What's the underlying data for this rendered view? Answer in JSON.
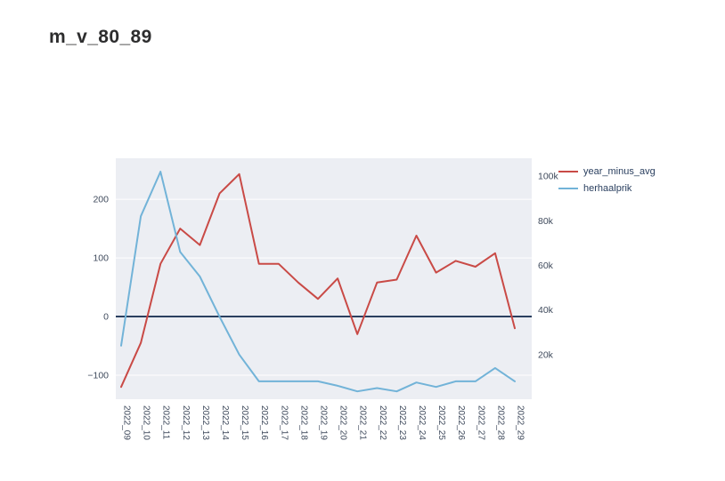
{
  "title": "m_v_80_89",
  "chart_data": {
    "type": "line",
    "title": "m_v_80_89",
    "categories": [
      "2022_09",
      "2022_10",
      "2022_11",
      "2022_12",
      "2022_13",
      "2022_14",
      "2022_15",
      "2022_16",
      "2022_17",
      "2022_18",
      "2022_19",
      "2022_20",
      "2022_21",
      "2022_22",
      "2022_23",
      "2022_24",
      "2022_25",
      "2022_26",
      "2022_27",
      "2022_28",
      "2022_29"
    ],
    "series": [
      {
        "name": "year_minus_avg",
        "axis": "left",
        "color": "#c94a46",
        "values": [
          -120,
          -45,
          90,
          150,
          122,
          210,
          243,
          90,
          90,
          58,
          30,
          65,
          -30,
          58,
          63,
          138,
          75,
          95,
          85,
          108,
          -20
        ]
      },
      {
        "name": "herhaalprik",
        "axis": "right",
        "color": "#72b3d8",
        "values": [
          24000,
          82000,
          102000,
          66000,
          55000,
          37000,
          20000,
          8000,
          8000,
          8000,
          8000,
          6000,
          3500,
          5000,
          3500,
          7500,
          5500,
          8000,
          8000,
          14000,
          8000
        ]
      }
    ],
    "left_axis": {
      "range": [
        -141,
        270
      ],
      "ticks": [
        -100,
        0,
        100,
        200
      ],
      "tick_labels": [
        "−100",
        "0",
        "100",
        "200"
      ]
    },
    "right_axis": {
      "range": [
        0,
        108000
      ],
      "ticks": [
        20000,
        40000,
        60000,
        80000,
        100000
      ],
      "tick_labels": [
        "20k",
        "40k",
        "60k",
        "80k",
        "100k"
      ]
    },
    "zero_line": {
      "axis": "left",
      "value": 0,
      "color": "#2a3f5f"
    },
    "plot_bg": "#eceef3",
    "grid_color": "#ffffff",
    "tick_color": "#3f4a5c",
    "legend_position": "right-top"
  },
  "legend": {
    "items": [
      {
        "label": "year_minus_avg",
        "color": "#c94a46"
      },
      {
        "label": "herhaalprik",
        "color": "#72b3d8"
      }
    ]
  }
}
